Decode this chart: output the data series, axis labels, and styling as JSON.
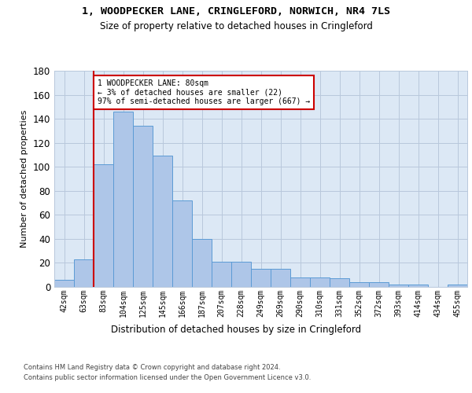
{
  "title_line1": "1, WOODPECKER LANE, CRINGLEFORD, NORWICH, NR4 7LS",
  "title_line2": "Size of property relative to detached houses in Cringleford",
  "xlabel": "Distribution of detached houses by size in Cringleford",
  "ylabel": "Number of detached properties",
  "bar_labels": [
    "42sqm",
    "63sqm",
    "83sqm",
    "104sqm",
    "125sqm",
    "145sqm",
    "166sqm",
    "187sqm",
    "207sqm",
    "228sqm",
    "249sqm",
    "269sqm",
    "290sqm",
    "310sqm",
    "331sqm",
    "352sqm",
    "372sqm",
    "393sqm",
    "414sqm",
    "434sqm",
    "455sqm"
  ],
  "bar_values": [
    6,
    23,
    102,
    146,
    134,
    109,
    72,
    40,
    21,
    21,
    15,
    15,
    8,
    8,
    7,
    4,
    4,
    2,
    2,
    0,
    2
  ],
  "bar_color": "#aec6e8",
  "bar_edge_color": "#5b9bd5",
  "annotation_line1": "1 WOODPECKER LANE: 80sqm",
  "annotation_line2": "← 3% of detached houses are smaller (22)",
  "annotation_line3": "97% of semi-detached houses are larger (667) →",
  "vline_color": "#cc0000",
  "annotation_box_color": "#cc0000",
  "ylim": [
    0,
    180
  ],
  "yticks": [
    0,
    20,
    40,
    60,
    80,
    100,
    120,
    140,
    160,
    180
  ],
  "background_color": "#dce8f5",
  "footer_line1": "Contains HM Land Registry data © Crown copyright and database right 2024.",
  "footer_line2": "Contains public sector information licensed under the Open Government Licence v3.0."
}
